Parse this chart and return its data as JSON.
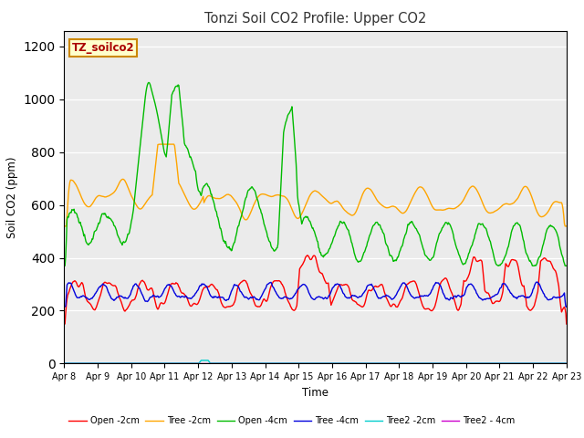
{
  "title": "Tonzi Soil CO2 Profile: Upper CO2",
  "xlabel": "Time",
  "ylabel": "Soil CO2 (ppm)",
  "ylim": [
    0,
    1260
  ],
  "yticks": [
    0,
    200,
    400,
    600,
    800,
    1000,
    1200
  ],
  "watermark": "TZ_soilco2",
  "bg_color": "#ebebeb",
  "series": {
    "open_2cm": {
      "color": "#ff0000",
      "label": "Open -2cm",
      "lw": 1.0
    },
    "tree_2cm": {
      "color": "#ffa500",
      "label": "Tree -2cm",
      "lw": 1.0
    },
    "open_4cm": {
      "color": "#00bb00",
      "label": "Open -4cm",
      "lw": 1.0
    },
    "tree_4cm": {
      "color": "#0000dd",
      "label": "Tree -4cm",
      "lw": 1.0
    },
    "tree2_2cm": {
      "color": "#00cccc",
      "label": "Tree2 -2cm",
      "lw": 1.0
    },
    "tree2_4cm": {
      "color": "#cc00cc",
      "label": "Tree2 - 4cm",
      "lw": 1.0
    }
  },
  "x_tick_labels": [
    "Apr 8",
    "Apr 9",
    "Apr 10",
    "Apr 11",
    "Apr 12",
    "Apr 13",
    "Apr 14",
    "Apr 15",
    "Apr 16",
    "Apr 17",
    "Apr 18",
    "Apr 19",
    "Apr 20",
    "Apr 21",
    "Apr 22",
    "Apr 23"
  ]
}
